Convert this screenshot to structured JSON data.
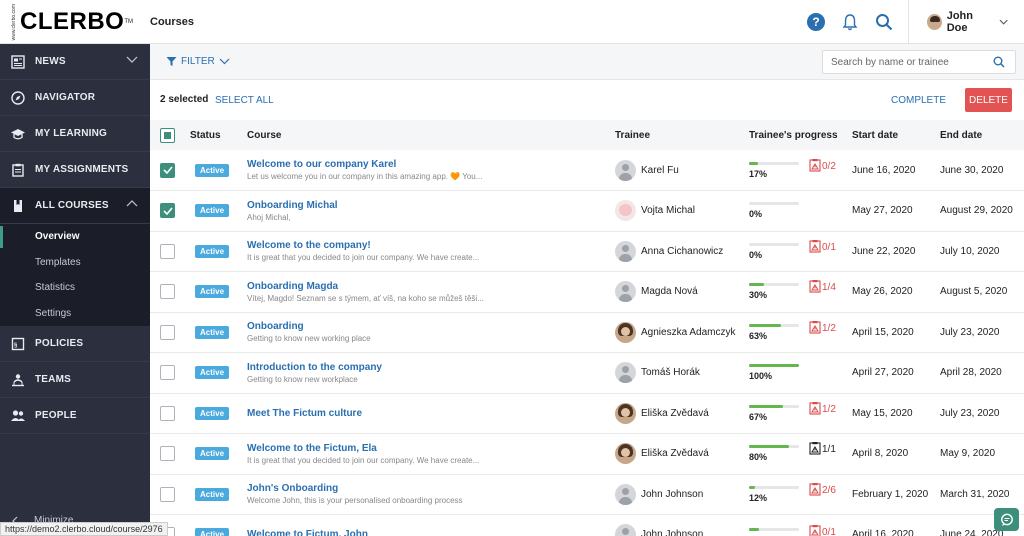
{
  "header": {
    "logo_small": "www.clerbo.com",
    "logo": "CLERBO",
    "logo_tm": "TM",
    "page_title": "Courses",
    "user_name": "John Doe"
  },
  "sidebar": {
    "items": [
      {
        "label": "NEWS",
        "icon": "newspaper-icon"
      },
      {
        "label": "NAVIGATOR",
        "icon": "compass-icon"
      },
      {
        "label": "MY LEARNING",
        "icon": "graduation-cap-icon"
      },
      {
        "label": "MY ASSIGNMENTS",
        "icon": "clipboard-icon"
      },
      {
        "label": "ALL COURSES",
        "icon": "book-icon"
      },
      {
        "label": "POLICIES",
        "icon": "document-icon"
      },
      {
        "label": "TEAMS",
        "icon": "team-icon"
      },
      {
        "label": "PEOPLE",
        "icon": "people-icon"
      }
    ],
    "sub_items": [
      "Overview",
      "Templates",
      "Statistics",
      "Settings"
    ],
    "minimize": "Minimize"
  },
  "status_url": "https://demo2.clerbo.cloud/course/2976",
  "toolbar": {
    "filter_label": "FILTER",
    "search_placeholder": "Search by name or trainee",
    "selected": "2 selected",
    "select_all": "SELECT ALL",
    "complete": "COMPLETE",
    "delete": "DELETE"
  },
  "table": {
    "headers": {
      "status": "Status",
      "course": "Course",
      "trainee": "Trainee",
      "progress": "Trainee's progress",
      "start": "Start date",
      "end": "End date"
    },
    "rows": [
      {
        "checked": true,
        "status": "Active",
        "title": "Welcome to our company Karel",
        "desc": "Let us welcome you in our company in this amazing app. 🧡 You...",
        "trainee": "Karel Fu",
        "avatar": "generic",
        "progress": 17,
        "progress_label": "17%",
        "tasks": "0/2",
        "tasks_color": "red",
        "start": "June 16, 2020",
        "end": "June 30, 2020"
      },
      {
        "checked": true,
        "status": "Active",
        "title": "Onboarding Michal",
        "desc": "Ahoj Michal,",
        "trainee": "Vojta Michal",
        "avatar": "cat",
        "progress": 0,
        "progress_label": "0%",
        "tasks": "",
        "tasks_color": "none",
        "start": "May 27, 2020",
        "end": "August 29, 2020"
      },
      {
        "checked": false,
        "status": "Active",
        "title": "Welcome to the company!",
        "desc": "It is great that you decided to join our company. We have create...",
        "trainee": "Anna Cichanowicz",
        "avatar": "generic",
        "progress": 0,
        "progress_label": "0%",
        "tasks": "0/1",
        "tasks_color": "red",
        "start": "June 22, 2020",
        "end": "July 10, 2020"
      },
      {
        "checked": false,
        "status": "Active",
        "title": "Onboarding Magda",
        "desc": "Vítej, Magdo! Seznam se s týmem, ať víš, na koho se můžeš těši...",
        "trainee": "Magda Nová",
        "avatar": "generic",
        "progress": 30,
        "progress_label": "30%",
        "tasks": "1/4",
        "tasks_color": "red",
        "start": "May 26, 2020",
        "end": "August 5, 2020"
      },
      {
        "checked": false,
        "status": "Active",
        "title": "Onboarding",
        "desc": "Getting to know new working place",
        "trainee": "Agnieszka Adamczyk",
        "avatar": "photo",
        "progress": 63,
        "progress_label": "63%",
        "tasks": "1/2",
        "tasks_color": "red",
        "start": "April 15, 2020",
        "end": "July 23, 2020"
      },
      {
        "checked": false,
        "status": "Active",
        "title": "Introduction to the company",
        "desc": "Getting to know new workplace",
        "trainee": "Tomáš Horák",
        "avatar": "generic",
        "progress": 100,
        "progress_label": "100%",
        "tasks": "",
        "tasks_color": "none",
        "start": "April 27, 2020",
        "end": "April 28, 2020"
      },
      {
        "checked": false,
        "status": "Active",
        "title": "Meet The Fictum culture",
        "desc": "",
        "trainee": "Eliška Zvědavá",
        "avatar": "photo",
        "progress": 67,
        "progress_label": "67%",
        "tasks": "1/2",
        "tasks_color": "red",
        "start": "May 15, 2020",
        "end": "July 23, 2020"
      },
      {
        "checked": false,
        "status": "Active",
        "title": "Welcome to the Fictum, Ela",
        "desc": "It is great that you decided to join our company. We have create...",
        "trainee": "Eliška Zvědavá",
        "avatar": "photo",
        "progress": 80,
        "progress_label": "80%",
        "tasks": "1/1",
        "tasks_color": "dark",
        "start": "April 8, 2020",
        "end": "May 9, 2020"
      },
      {
        "checked": false,
        "status": "Active",
        "title": "John's Onboarding",
        "desc": "Welcome John, this is your personalised onboarding process",
        "trainee": "John Johnson",
        "avatar": "generic",
        "progress": 12,
        "progress_label": "12%",
        "tasks": "2/6",
        "tasks_color": "red",
        "start": "February 1, 2020",
        "end": "March 31, 2020"
      },
      {
        "checked": false,
        "status": "Active",
        "title": "Welcome to Fictum, John",
        "desc": "",
        "trainee": "John Johnson",
        "avatar": "generic",
        "progress": 20,
        "progress_label": "",
        "tasks": "0/1",
        "tasks_color": "red",
        "start": "April 16, 2020",
        "end": "June 24, 2020"
      }
    ]
  }
}
